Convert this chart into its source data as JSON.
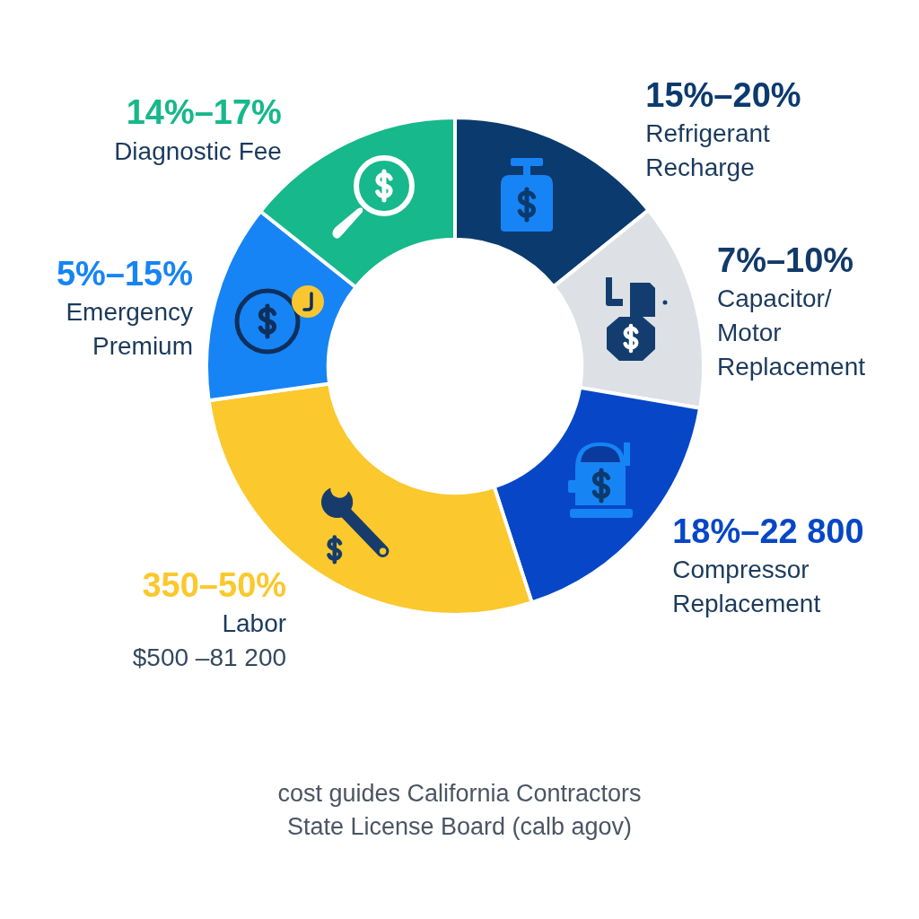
{
  "chart_data": {
    "type": "donut",
    "categories": [
      "Refrigerant Recharge",
      "Capacitor/Motor Replacement",
      "Compressor Replacement",
      "Labor",
      "Emergency Premium",
      "Diagnostic Fee"
    ],
    "values": [
      14.2,
      13.5,
      17.3,
      27.8,
      12.9,
      14.3
    ],
    "colors": [
      "#0b3a6e",
      "#dde1e6",
      "#0747c7",
      "#fbc82d",
      "#1684f5",
      "#17b88b"
    ],
    "annotations": [
      {
        "text": "15%–20%",
        "x": "Refrigerant Recharge"
      },
      {
        "text": "7%–10%",
        "x": "Capacitor/Motor Replacement"
      },
      {
        "text": "18%–22 800",
        "x": "Compressor Replacement"
      },
      {
        "text": "350–50%",
        "x": "Labor"
      },
      {
        "text": "$500 –81 200",
        "x": "Labor"
      },
      {
        "text": "5%–15%",
        "x": "Emergency Premium"
      },
      {
        "text": "14%–17%",
        "x": "Diagnostic Fee"
      },
      "cost guides California Contractors State License Board (calb agov)"
    ],
    "legend": false
  }
}
